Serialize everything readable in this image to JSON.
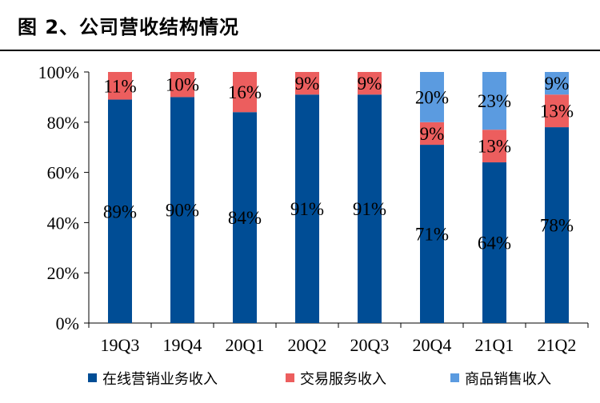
{
  "page": {
    "title": "图 2、公司营收结构情况"
  },
  "chart_data": {
    "type": "bar",
    "stacked": true,
    "percent": true,
    "categories": [
      "19Q3",
      "19Q4",
      "20Q1",
      "20Q2",
      "20Q3",
      "20Q4",
      "21Q1",
      "21Q2"
    ],
    "series": [
      {
        "name": "在线营销业务收入",
        "color": "#004D95",
        "values": [
          89,
          90,
          84,
          91,
          91,
          71,
          64,
          78
        ]
      },
      {
        "name": "交易服务收入",
        "color": "#EC5E5E",
        "values": [
          11,
          10,
          16,
          9,
          9,
          9,
          13,
          13
        ]
      },
      {
        "name": "商品销售收入",
        "color": "#5B9BE0",
        "values": [
          0,
          0,
          0,
          0,
          0,
          20,
          23,
          9
        ]
      }
    ],
    "y_ticks": [
      "0%",
      "20%",
      "40%",
      "60%",
      "80%",
      "100%"
    ],
    "ylim": [
      0,
      100
    ],
    "grid": false,
    "legend_position": "bottom",
    "title": "",
    "xlabel": "",
    "ylabel": ""
  }
}
